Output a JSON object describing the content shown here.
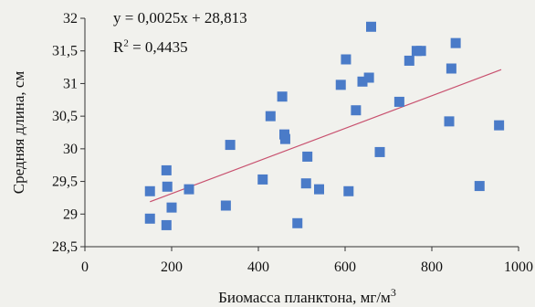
{
  "chart_data": {
    "type": "scatter",
    "title": "",
    "xlabel": "Биомасса планктона, мг/м",
    "xlabel_superscript": "3",
    "ylabel": "Средняя длина, см",
    "xlim": [
      0,
      1000
    ],
    "ylim": [
      28.5,
      32
    ],
    "xticks": [
      "0",
      "200",
      "400",
      "600",
      "800",
      "1000"
    ],
    "yticks": [
      "28,5",
      "29",
      "29,5",
      "30",
      "30,5",
      "31",
      "31,5",
      "32"
    ],
    "grid": false,
    "marker_color": "#4a7bc8",
    "trendline_color": "#c8506e",
    "annotation": {
      "equation": "y = 0,0025x + 28,813",
      "r2_label": "R",
      "r2_superscript": "2",
      "r2_value": " = 0,4435"
    },
    "trendline": {
      "slope": 0.0025,
      "intercept": 28.813,
      "x_range": [
        150,
        960
      ]
    },
    "points": [
      {
        "x": 150,
        "y": 29.35
      },
      {
        "x": 150,
        "y": 28.93
      },
      {
        "x": 188,
        "y": 29.67
      },
      {
        "x": 190,
        "y": 29.42
      },
      {
        "x": 188,
        "y": 28.83
      },
      {
        "x": 200,
        "y": 29.1
      },
      {
        "x": 240,
        "y": 29.38
      },
      {
        "x": 325,
        "y": 29.13
      },
      {
        "x": 335,
        "y": 30.06
      },
      {
        "x": 410,
        "y": 29.53
      },
      {
        "x": 428,
        "y": 30.5
      },
      {
        "x": 455,
        "y": 30.8
      },
      {
        "x": 460,
        "y": 30.22
      },
      {
        "x": 462,
        "y": 30.15
      },
      {
        "x": 490,
        "y": 28.86
      },
      {
        "x": 510,
        "y": 29.47
      },
      {
        "x": 513,
        "y": 29.88
      },
      {
        "x": 540,
        "y": 29.38
      },
      {
        "x": 590,
        "y": 30.98
      },
      {
        "x": 602,
        "y": 31.37
      },
      {
        "x": 608,
        "y": 29.35
      },
      {
        "x": 625,
        "y": 30.59
      },
      {
        "x": 640,
        "y": 31.03
      },
      {
        "x": 655,
        "y": 31.09
      },
      {
        "x": 660,
        "y": 31.87
      },
      {
        "x": 680,
        "y": 29.95
      },
      {
        "x": 725,
        "y": 30.72
      },
      {
        "x": 748,
        "y": 31.35
      },
      {
        "x": 765,
        "y": 31.5
      },
      {
        "x": 775,
        "y": 31.5
      },
      {
        "x": 840,
        "y": 30.42
      },
      {
        "x": 845,
        "y": 31.23
      },
      {
        "x": 855,
        "y": 31.62
      },
      {
        "x": 910,
        "y": 29.43
      },
      {
        "x": 955,
        "y": 30.36
      }
    ]
  }
}
